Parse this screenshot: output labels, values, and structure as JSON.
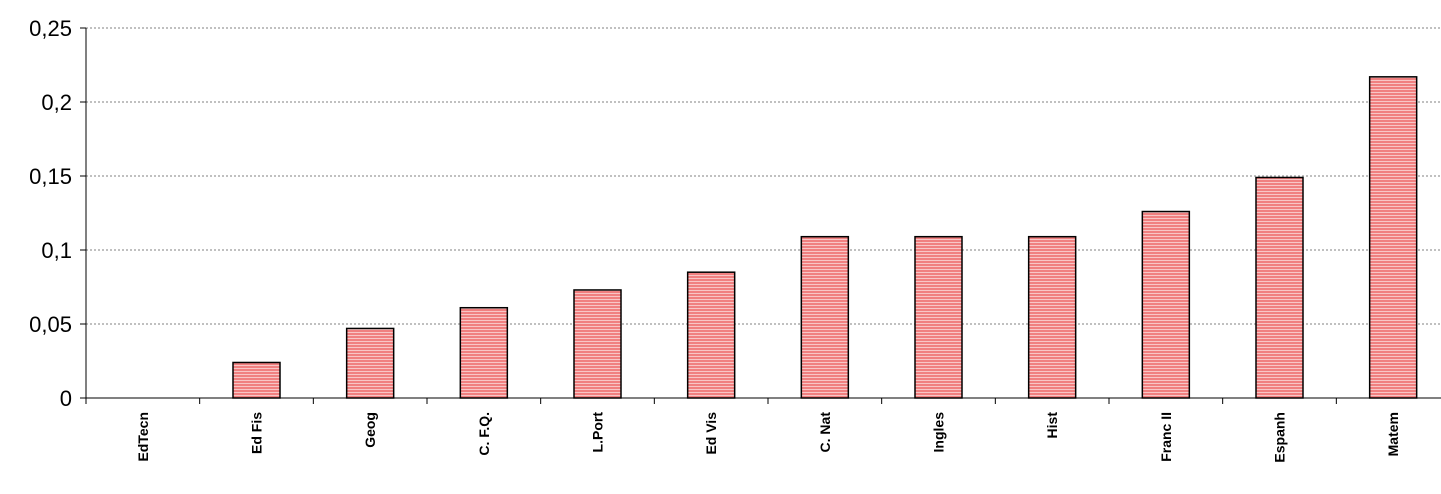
{
  "chart_data": {
    "type": "bar",
    "title": "",
    "xlabel": "",
    "ylabel": "",
    "categories": [
      "EdTecn",
      "Ed Fis",
      "Geog",
      "C. F.Q.",
      "L.Port",
      "Ed Vis",
      "C. Nat",
      "Ingles",
      "Hist",
      "Franc II",
      "Espanh",
      "Matem"
    ],
    "values": [
      0,
      0.024,
      0.047,
      0.061,
      0.073,
      0.085,
      0.109,
      0.109,
      0.109,
      0.126,
      0.149,
      0.217
    ],
    "ylim": [
      0,
      0.25
    ],
    "yticks": [
      0,
      0.05,
      0.1,
      0.15,
      0.2,
      0.25
    ],
    "ytick_labels": [
      "0",
      "0,05",
      "0,1",
      "0,15",
      "0,2",
      "0,25"
    ],
    "grid": true,
    "legend": "none",
    "colors": {
      "bar_fill": "#f08080",
      "bar_stripe": "#ffffff",
      "bar_stroke": "#000000",
      "grid": "#808080",
      "axis": "#000000"
    }
  }
}
